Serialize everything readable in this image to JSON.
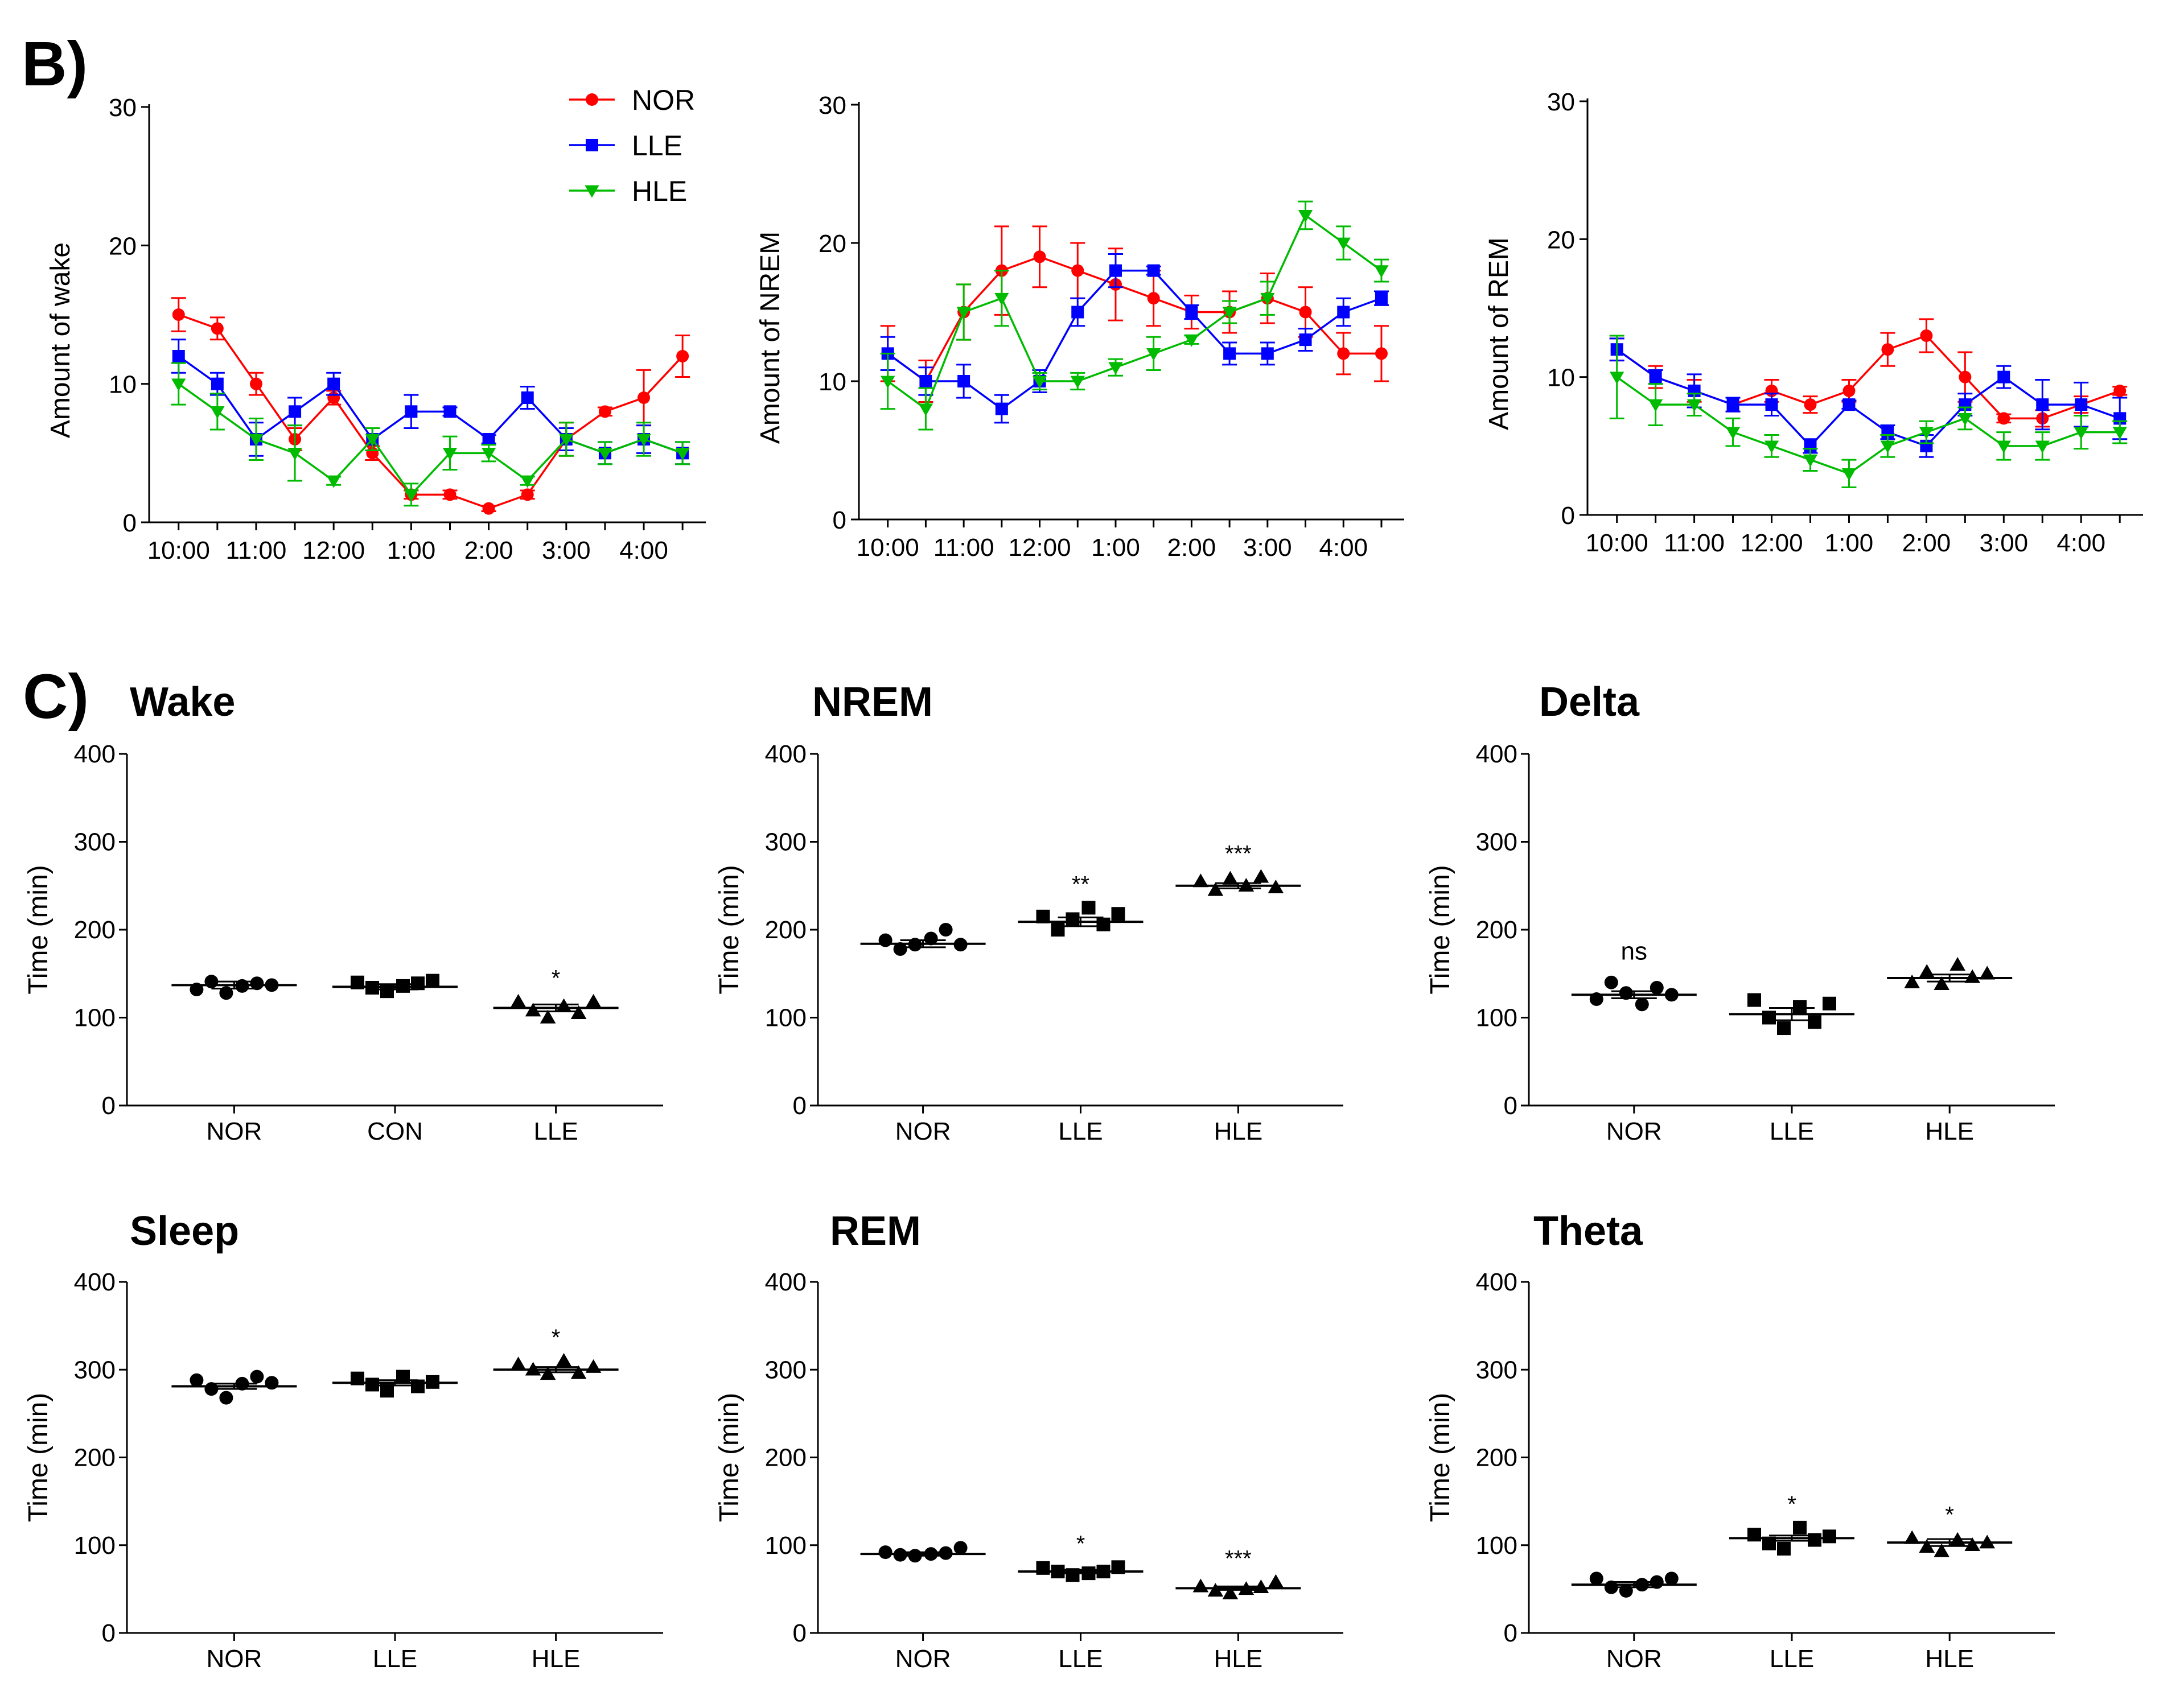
{
  "figure": {
    "panel_b_label": "B)",
    "panel_c_label": "C)"
  },
  "chart_data": [
    {
      "id": "b_wake",
      "type": "line",
      "ylabel": "Amount of wake",
      "ylim": [
        0,
        30
      ],
      "yticks": [
        0,
        10,
        20,
        30
      ],
      "xticks": [
        "10:00",
        "11:00",
        "12:00",
        "1:00",
        "2:00",
        "3:00",
        "4:00"
      ],
      "x": [
        0,
        0.5,
        1,
        1.5,
        2,
        2.5,
        3,
        3.5,
        4,
        4.5,
        5,
        5.5,
        6,
        6.5
      ],
      "legend": true,
      "series": [
        {
          "name": "NOR",
          "color": "#ff0000",
          "marker": "circle",
          "values": [
            15,
            14,
            10,
            6,
            9,
            5,
            2,
            2,
            1,
            2,
            6,
            8,
            9,
            12
          ],
          "errors": [
            1.2,
            0.8,
            0.8,
            0.8,
            0.5,
            0.5,
            0.3,
            0.3,
            0.2,
            0.3,
            1.2,
            0.3,
            2,
            1.5
          ]
        },
        {
          "name": "LLE",
          "color": "#0000ff",
          "marker": "square",
          "values": [
            12,
            10,
            6,
            8,
            10,
            6,
            8,
            8,
            6,
            9,
            6,
            5,
            6,
            5
          ],
          "errors": [
            1.2,
            0.8,
            1.2,
            1,
            0.8,
            0.8,
            1.2,
            0.3,
            0.3,
            0.8,
            0.8,
            0.8,
            1,
            0.8
          ]
        },
        {
          "name": "HLE",
          "color": "#00bb00",
          "marker": "triangle-down",
          "values": [
            10,
            8,
            6,
            5,
            3,
            6,
            2,
            5,
            5,
            3,
            6,
            5,
            6,
            5
          ],
          "errors": [
            1.5,
            1.3,
            1.5,
            2,
            0.3,
            0.8,
            0.8,
            1.2,
            0.6,
            0.3,
            1.2,
            0.8,
            1.2,
            0.8
          ]
        }
      ]
    },
    {
      "id": "b_nrem",
      "type": "line",
      "ylabel": "Amount of NREM",
      "ylim": [
        0,
        30
      ],
      "yticks": [
        0,
        10,
        20,
        30
      ],
      "xticks": [
        "10:00",
        "11:00",
        "12:00",
        "1:00",
        "2:00",
        "3:00",
        "4:00"
      ],
      "x": [
        0,
        0.5,
        1,
        1.5,
        2,
        2.5,
        3,
        3.5,
        4,
        4.5,
        5,
        5.5,
        6,
        6.5
      ],
      "legend": false,
      "series": [
        {
          "name": "NOR",
          "color": "#ff0000",
          "marker": "circle",
          "values": [
            12,
            10,
            15,
            18,
            19,
            18,
            17,
            16,
            15,
            15,
            16,
            15,
            12,
            12
          ],
          "errors": [
            2,
            1.5,
            2,
            3.2,
            2.2,
            2,
            2.6,
            2,
            1.2,
            1.5,
            1.8,
            1.8,
            1.5,
            2
          ]
        },
        {
          "name": "LLE",
          "color": "#0000ff",
          "marker": "square",
          "values": [
            12,
            10,
            10,
            8,
            10,
            15,
            18,
            18,
            15,
            12,
            12,
            13,
            15,
            16
          ],
          "errors": [
            1.2,
            1,
            1.2,
            1,
            0.8,
            1,
            1.2,
            0.3,
            0.5,
            0.8,
            0.8,
            0.8,
            1,
            0.5
          ]
        },
        {
          "name": "HLE",
          "color": "#00bb00",
          "marker": "triangle-down",
          "values": [
            10,
            8,
            15,
            16,
            10,
            10,
            11,
            12,
            13,
            15,
            16,
            22,
            20,
            18
          ],
          "errors": [
            2,
            1.5,
            2,
            2,
            0.6,
            0.6,
            0.6,
            1.2,
            0.3,
            0.8,
            1.2,
            1,
            1.2,
            0.8
          ]
        }
      ]
    },
    {
      "id": "b_rem",
      "type": "line",
      "ylabel": "Amount of REM",
      "ylim": [
        0,
        30
      ],
      "yticks": [
        0,
        10,
        20,
        30
      ],
      "xticks": [
        "10:00",
        "11:00",
        "12:00",
        "1:00",
        "2:00",
        "3:00",
        "4:00"
      ],
      "x": [
        0,
        0.5,
        1,
        1.5,
        2,
        2.5,
        3,
        3.5,
        4,
        4.5,
        5,
        5.5,
        6,
        6.5
      ],
      "legend": false,
      "series": [
        {
          "name": "NOR",
          "color": "#ff0000",
          "marker": "circle",
          "values": [
            12,
            10,
            9,
            8,
            9,
            8,
            9,
            12,
            13,
            10,
            7,
            7,
            8,
            9
          ],
          "errors": [
            0.8,
            0.8,
            0.8,
            0.5,
            0.8,
            0.6,
            0.8,
            1.2,
            1.2,
            1.8,
            0.3,
            0.6,
            0.6,
            0.3
          ]
        },
        {
          "name": "LLE",
          "color": "#0000ff",
          "marker": "square",
          "values": [
            12,
            10,
            9,
            8,
            8,
            5,
            8,
            6,
            5,
            8,
            10,
            8,
            8,
            7
          ],
          "errors": [
            0.8,
            0.5,
            1.2,
            0.5,
            0.8,
            0.5,
            0.3,
            0.5,
            0.8,
            0.8,
            0.8,
            1.8,
            1.6,
            1.5
          ]
        },
        {
          "name": "HLE",
          "color": "#00bb00",
          "marker": "triangle-down",
          "values": [
            10,
            8,
            8,
            6,
            5,
            4,
            3,
            5,
            6,
            7,
            5,
            5,
            6,
            6
          ],
          "errors": [
            3,
            1.5,
            0.8,
            1,
            0.8,
            0.8,
            1,
            0.8,
            0.8,
            0.8,
            1,
            1,
            1.2,
            0.8
          ]
        }
      ]
    },
    {
      "id": "c_wake",
      "type": "scatter",
      "title": "Wake",
      "ylabel": "Time (min)",
      "ylim": [
        0,
        400
      ],
      "yticks": [
        0,
        100,
        200,
        300,
        400
      ],
      "categories": [
        "NOR",
        "CON",
        "LLE"
      ],
      "markers": [
        "circle",
        "square",
        "triangle"
      ],
      "means": [
        137,
        135,
        111
      ],
      "sems": [
        4,
        3,
        4
      ],
      "points": [
        [
          132,
          141,
          128,
          136,
          139,
          137
        ],
        [
          140,
          134,
          130,
          136,
          139,
          142
        ],
        [
          118,
          108,
          100,
          113,
          105,
          118
        ]
      ],
      "significance": [
        "",
        "",
        "*"
      ]
    },
    {
      "id": "c_nrem",
      "type": "scatter",
      "title": "NREM",
      "ylabel": "Time (min)",
      "ylim": [
        0,
        400
      ],
      "yticks": [
        0,
        100,
        200,
        300,
        400
      ],
      "categories": [
        "NOR",
        "LLE",
        "HLE"
      ],
      "markers": [
        "circle",
        "square",
        "triangle"
      ],
      "means": [
        184,
        209,
        250
      ],
      "sems": [
        4,
        5,
        3
      ],
      "points": [
        [
          188,
          178,
          183,
          190,
          200,
          183
        ],
        [
          215,
          200,
          212,
          225,
          206,
          218
        ],
        [
          255,
          245,
          258,
          250,
          260,
          248
        ]
      ],
      "significance": [
        "",
        "**",
        "***"
      ]
    },
    {
      "id": "c_delta",
      "type": "scatter",
      "title": "Delta",
      "ylabel": "Time (min)",
      "ylim": [
        0,
        400
      ],
      "yticks": [
        0,
        100,
        200,
        300,
        400
      ],
      "categories": [
        "NOR",
        "LLE",
        "HLE"
      ],
      "markers": [
        "circle",
        "square",
        "triangle"
      ],
      "means": [
        126,
        104,
        145
      ],
      "sems": [
        4,
        7,
        4
      ],
      "points": [
        [
          121,
          140,
          128,
          115,
          134,
          126
        ],
        [
          120,
          100,
          88,
          112,
          95,
          116
        ],
        [
          140,
          152,
          138,
          160,
          146,
          150
        ]
      ],
      "significance": [
        "ns",
        "",
        ""
      ]
    },
    {
      "id": "c_sleep",
      "type": "scatter",
      "title": "Sleep",
      "ylabel": "Time (min)",
      "ylim": [
        0,
        400
      ],
      "yticks": [
        0,
        100,
        200,
        300,
        400
      ],
      "categories": [
        "NOR",
        "LLE",
        "HLE"
      ],
      "markers": [
        "circle",
        "square",
        "triangle"
      ],
      "means": [
        281,
        285,
        300
      ],
      "sems": [
        3,
        3,
        3
      ],
      "points": [
        [
          288,
          278,
          268,
          284,
          292,
          285
        ],
        [
          290,
          283,
          276,
          292,
          281,
          286
        ],
        [
          306,
          300,
          295,
          310,
          296,
          303
        ]
      ],
      "significance": [
        "",
        "",
        "*"
      ]
    },
    {
      "id": "c_rem",
      "type": "scatter",
      "title": "REM",
      "ylabel": "Time (min)",
      "ylim": [
        0,
        400
      ],
      "yticks": [
        0,
        100,
        200,
        300,
        400
      ],
      "categories": [
        "NOR",
        "LLE",
        "HLE"
      ],
      "markers": [
        "circle",
        "square",
        "triangle"
      ],
      "means": [
        90,
        70,
        51
      ],
      "sems": [
        2,
        2,
        2
      ],
      "points": [
        [
          92,
          89,
          88,
          90,
          91,
          97
        ],
        [
          74,
          70,
          66,
          68,
          70,
          75
        ],
        [
          53,
          48,
          45,
          50,
          52,
          58
        ]
      ],
      "significance": [
        "",
        "*",
        "***"
      ]
    },
    {
      "id": "c_theta",
      "type": "scatter",
      "title": "Theta",
      "ylabel": "Time (min)",
      "ylim": [
        0,
        400
      ],
      "yticks": [
        0,
        100,
        200,
        300,
        400
      ],
      "categories": [
        "NOR",
        "LLE",
        "HLE"
      ],
      "markers": [
        "circle",
        "square",
        "triangle"
      ],
      "means": [
        55,
        108,
        103
      ],
      "sems": [
        3,
        3,
        4
      ],
      "points": [
        [
          62,
          52,
          48,
          55,
          58,
          62
        ],
        [
          112,
          102,
          96,
          120,
          106,
          110
        ],
        [
          108,
          98,
          93,
          106,
          100,
          103
        ]
      ],
      "significance": [
        "",
        "*",
        "*"
      ]
    }
  ]
}
